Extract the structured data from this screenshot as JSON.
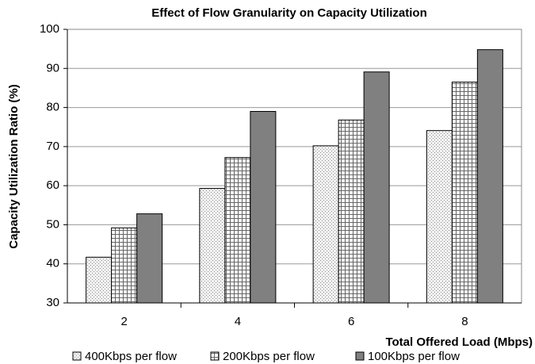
{
  "chart_data": {
    "type": "bar",
    "title": "Effect of Flow Granularity on Capacity Utilization",
    "x_label": "Total Offered Load (Mbps)",
    "y_label": "Capacity Utilization Ratio (%)",
    "categories": [
      "2",
      "4",
      "6",
      "8"
    ],
    "series": [
      {
        "name": "400Kbps per flow",
        "color": "#e6e6e6",
        "values": [
          41.7,
          59.3,
          70.2,
          74.1
        ]
      },
      {
        "name": "200Kbps per flow",
        "color": "#ffffff",
        "values": [
          49.2,
          67.2,
          76.8,
          86.5
        ]
      },
      {
        "name": "100Kbps per flow",
        "color": "#808080",
        "values": [
          52.8,
          79.0,
          89.1,
          94.8
        ]
      }
    ],
    "ylim": [
      30,
      100
    ],
    "yticks": [
      30,
      40,
      50,
      60,
      70,
      80,
      90,
      100
    ],
    "grid": true
  }
}
